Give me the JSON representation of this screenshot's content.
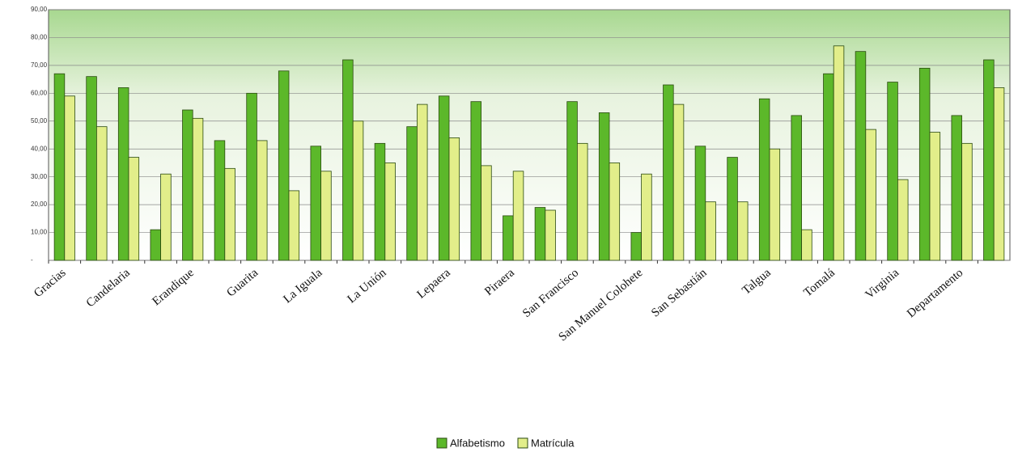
{
  "chart_data": {
    "type": "bar",
    "categories": [
      "Gracias",
      null,
      "Candelaria",
      null,
      "Erandique",
      null,
      "Guarita",
      null,
      "La Iguala",
      null,
      "La Unión",
      null,
      "Lepaera",
      null,
      "Piraera",
      null,
      "San Francisco",
      null,
      "San Manuel Colohete",
      null,
      "San Sebastián",
      null,
      "Talgua",
      null,
      "Tomalá",
      null,
      "Virginia",
      null,
      "Departamento",
      null
    ],
    "series": [
      {
        "name": "Alfabetismo",
        "color": "#5cb82a",
        "values": [
          67,
          66,
          62,
          11,
          54,
          43,
          60,
          68,
          41,
          72,
          42,
          48,
          59,
          57,
          16,
          19,
          57,
          53,
          10,
          63,
          41,
          37,
          58,
          52,
          67,
          75,
          64,
          69,
          52,
          72
        ]
      },
      {
        "name": "Matrícula",
        "color": "#e2ee8a",
        "values": [
          59,
          48,
          37,
          31,
          51,
          33,
          43,
          25,
          32,
          50,
          35,
          56,
          44,
          34,
          32,
          18,
          42,
          35,
          31,
          56,
          21,
          21,
          40,
          11,
          77,
          47,
          29,
          46,
          42,
          62
        ]
      }
    ],
    "ylim": [
      0,
      90
    ],
    "yticks": [
      {
        "value": 0,
        "label": "-"
      },
      {
        "value": 10,
        "label": "10,00"
      },
      {
        "value": 20,
        "label": "20,00"
      },
      {
        "value": 30,
        "label": "30,00"
      },
      {
        "value": 40,
        "label": "40,00"
      },
      {
        "value": 50,
        "label": "50,00"
      },
      {
        "value": 60,
        "label": "60,00"
      },
      {
        "value": 70,
        "label": "70,00"
      },
      {
        "value": 80,
        "label": "80,00"
      },
      {
        "value": 90,
        "label": "90,00"
      }
    ],
    "grid": true
  }
}
